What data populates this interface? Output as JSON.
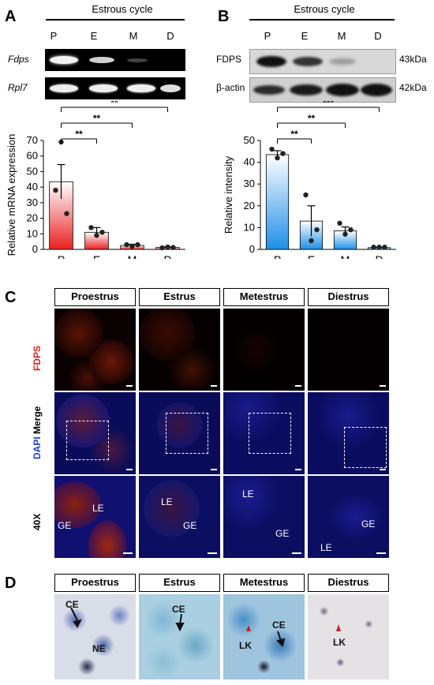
{
  "panelA": {
    "letter": "A",
    "header": "Estrous cycle",
    "lanes": [
      "P",
      "E",
      "M",
      "D"
    ],
    "rows": [
      "Fdps",
      "Rpl7"
    ],
    "sig": [
      "**",
      "**",
      "**"
    ],
    "chart_data": {
      "type": "bar",
      "categories": [
        "P",
        "E",
        "M",
        "D"
      ],
      "values": [
        43.5,
        11,
        2.5,
        1.2
      ],
      "errors": [
        11,
        3,
        0.8,
        0.4
      ],
      "points": [
        [
          38,
          69,
          23
        ],
        [
          14,
          9,
          11
        ],
        [
          3,
          2,
          3
        ],
        [
          1,
          1.5,
          1.2
        ]
      ],
      "ylabel": "Relative mRNA expression",
      "ylim": [
        0,
        70
      ],
      "yticks": [
        0,
        10,
        20,
        30,
        40,
        50,
        60,
        70
      ],
      "bar_color": "#e8201f"
    }
  },
  "panelB": {
    "letter": "B",
    "header": "Estrous cycle",
    "lanes": [
      "P",
      "E",
      "M",
      "D"
    ],
    "rows": [
      "FDPS",
      "β-actin"
    ],
    "sizes": [
      "43kDa",
      "42kDa"
    ],
    "sig": [
      "**",
      "**",
      "***"
    ],
    "chart_data": {
      "type": "bar",
      "categories": [
        "P",
        "E",
        "M",
        "D"
      ],
      "values": [
        43.5,
        13,
        8.5,
        0.8
      ],
      "errors": [
        1.8,
        7,
        1.8,
        0.2
      ],
      "points": [
        [
          46,
          42,
          44
        ],
        [
          25,
          4,
          9
        ],
        [
          12,
          7,
          9
        ],
        [
          1,
          1,
          1
        ]
      ],
      "ylabel": "Relative intensity",
      "ylim": [
        0,
        50
      ],
      "yticks": [
        0,
        10,
        20,
        30,
        40,
        50
      ],
      "bar_color": "#1e8fe8"
    }
  },
  "panelC": {
    "letter": "C",
    "stages": [
      "Proestrus",
      "Estrus",
      "Metestrus",
      "Diestrus"
    ],
    "row_fdps": "FDPS",
    "row_dapi": "DAPI",
    "row_merge": "Merge",
    "row_40x": "40X",
    "zoom_labels": [
      [
        "LE",
        "GE"
      ],
      [
        "LE",
        "GE"
      ],
      [
        "LE",
        "GE"
      ],
      [
        "GE",
        "LE"
      ]
    ]
  },
  "panelD": {
    "letter": "D",
    "stages": [
      "Proestrus",
      "Estrus",
      "Metestrus",
      "Diestrus"
    ],
    "labels": [
      [
        "CE",
        "NE"
      ],
      [
        "CE"
      ],
      [
        "CE",
        "LK"
      ],
      [
        "LK"
      ]
    ]
  }
}
